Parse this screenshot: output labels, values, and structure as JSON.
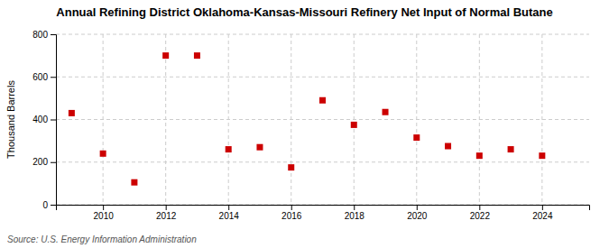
{
  "chart_data": {
    "type": "scatter",
    "title": "Annual Refining District Oklahoma-Kansas-Missouri Refinery Net Input of Normal Butane",
    "y_label": "Thousand Barrels",
    "annotations": [
      "Source: U.S. Energy Information Administration"
    ],
    "x": [
      2009,
      2010,
      2011,
      2012,
      2013,
      2014,
      2015,
      2016,
      2017,
      2018,
      2019,
      2020,
      2021,
      2022,
      2023,
      2024
    ],
    "values": [
      430,
      240,
      105,
      700,
      700,
      260,
      270,
      175,
      490,
      375,
      435,
      315,
      275,
      230,
      260,
      230
    ],
    "color": "#CC0000",
    "marker": "square",
    "grid": true,
    "xlim": [
      2008.5,
      2025.5
    ],
    "xticks": [
      2010,
      2012,
      2014,
      2016,
      2018,
      2020,
      2022,
      2024
    ],
    "ylim": [
      0,
      800
    ],
    "yticks": [
      0,
      200,
      400,
      600,
      800
    ]
  }
}
